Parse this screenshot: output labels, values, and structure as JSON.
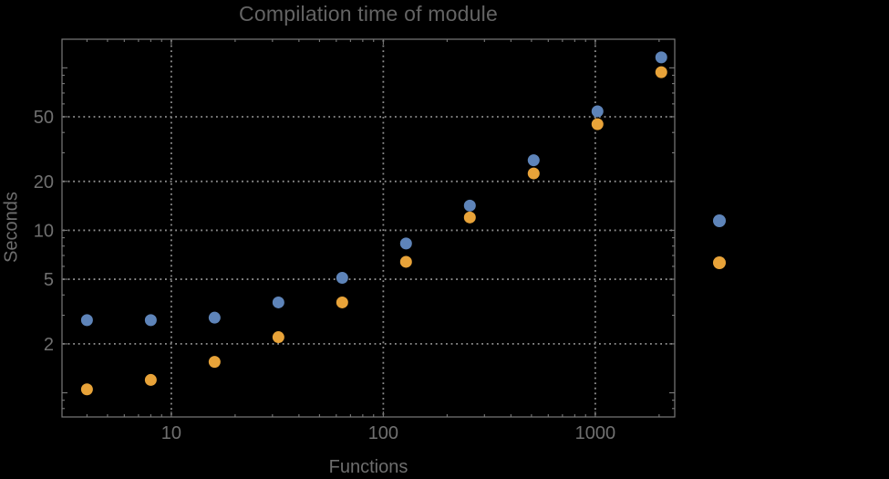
{
  "page": {
    "background_color": "#000000"
  },
  "chart_data": {
    "type": "scatter",
    "title": "Compilation time of module",
    "xlabel": "Functions",
    "ylabel": "Seconds",
    "xscale": "log",
    "yscale": "log",
    "xlim": [
      3.05,
      2370
    ],
    "ylim": [
      0.71,
      150
    ],
    "x_tick_values": [
      10,
      100,
      1000
    ],
    "x_tick_labels": [
      "10",
      "100",
      "1000"
    ],
    "x_minor_ticks": [
      4,
      5,
      6,
      7,
      8,
      9,
      20,
      30,
      40,
      50,
      60,
      70,
      80,
      90,
      200,
      300,
      400,
      500,
      600,
      700,
      800,
      900,
      2000
    ],
    "y_tick_values": [
      2,
      5,
      10,
      20,
      50
    ],
    "y_tick_labels": [
      "2",
      "5",
      "10",
      "20",
      "50"
    ],
    "y_major_unlabeled_ticks": [
      1,
      100
    ],
    "y_minor_ticks": [
      0.8,
      0.9,
      3,
      4,
      6,
      7,
      8,
      9,
      30,
      40,
      60,
      70,
      80,
      90
    ],
    "grid": {
      "style": "dotted",
      "color": "#8f8f8f",
      "x_lines_at": [
        10,
        100,
        1000
      ],
      "y_lines_at": [
        2,
        5,
        10,
        20,
        50
      ]
    },
    "series": [
      {
        "name": "series-1-blue",
        "marker": "circle",
        "color": "#5E84B9",
        "x": [
          4,
          8,
          16,
          32,
          64,
          128,
          256,
          512,
          1024,
          2048
        ],
        "y": [
          2.8,
          2.8,
          2.9,
          3.6,
          5.1,
          8.3,
          14.2,
          27,
          54,
          116
        ]
      },
      {
        "name": "series-2-orange",
        "marker": "circle",
        "color": "#E8A339",
        "x": [
          4,
          8,
          16,
          32,
          64,
          128,
          256,
          512,
          1024,
          2048
        ],
        "y": [
          1.05,
          1.2,
          1.55,
          2.2,
          3.6,
          6.4,
          12,
          22.4,
          45,
          94
        ]
      }
    ],
    "legend": {
      "position": "right-of-plot",
      "labels_visible": false,
      "markers": [
        {
          "series": "series-1-blue",
          "color": "#5E84B9"
        },
        {
          "series": "series-2-orange",
          "color": "#E8A339"
        }
      ]
    }
  },
  "colors": {
    "frame": "#7a7a7a",
    "tick": "#7a7a7a",
    "tick_label": "#707070",
    "grid": "#8f8f8f",
    "title": "#646464",
    "axis_label": "#6e6e6e"
  }
}
